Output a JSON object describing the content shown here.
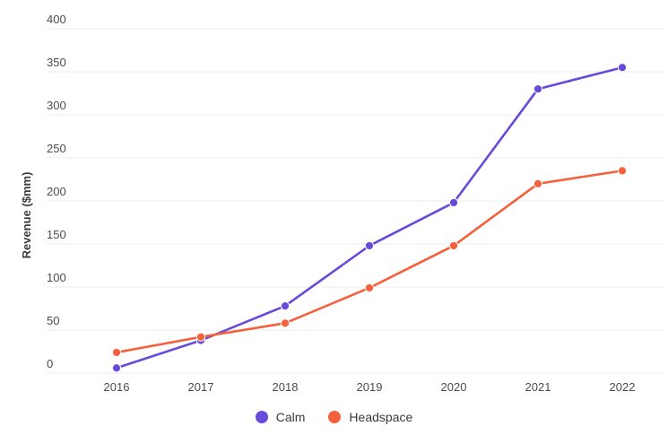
{
  "chart_data": {
    "type": "line",
    "title": "",
    "xlabel": "",
    "ylabel": "Revenue ($mm)",
    "categories": [
      "2016",
      "2017",
      "2018",
      "2019",
      "2020",
      "2021",
      "2022"
    ],
    "series": [
      {
        "name": "Calm",
        "color": "#6A4AD9",
        "values": [
          6,
          38,
          78,
          148,
          198,
          330,
          355
        ]
      },
      {
        "name": "Headspace",
        "color": "#F4613C",
        "values": [
          24,
          42,
          58,
          99,
          148,
          220,
          235
        ]
      }
    ],
    "ylim": [
      0,
      400
    ],
    "ytick_step": 50,
    "grid": "horizontal-only",
    "grid_color": "#ECECEC",
    "tick_label_color": "#4B4B4B",
    "axis_title_color": "#3D3D3D",
    "background_color": "#FFFFFF",
    "legend_position": "bottom-center",
    "marker": "filled-circle"
  }
}
